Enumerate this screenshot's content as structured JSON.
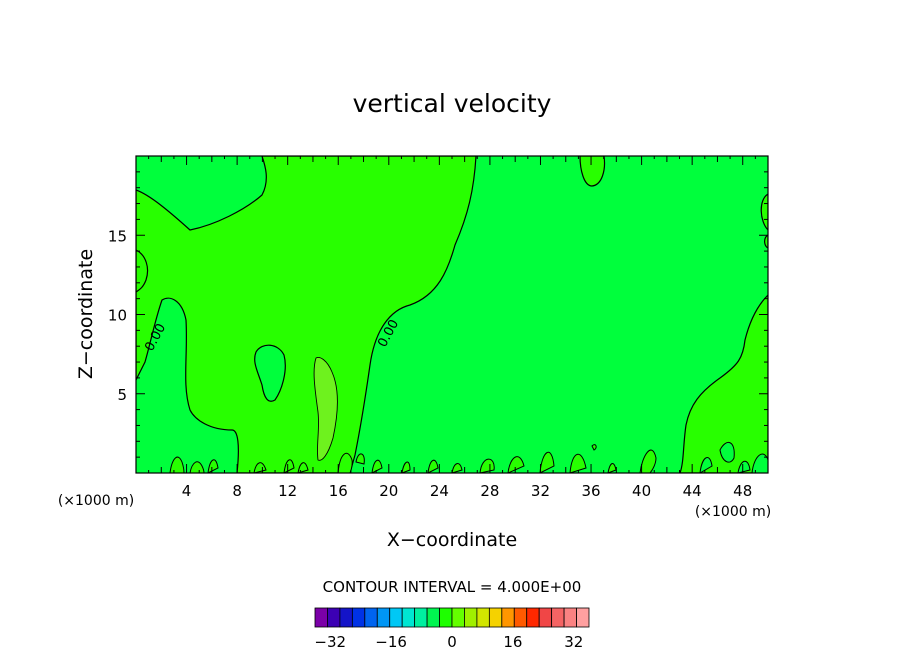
{
  "chart_data": {
    "type": "contour",
    "title": "vertical velocity",
    "xlabel": "X−coordinate",
    "ylabel": "Z−coordinate",
    "x_units": "(×1000 m)",
    "xlim": [
      0,
      50
    ],
    "ylim": [
      0,
      20
    ],
    "x_ticks": [
      4,
      8,
      12,
      16,
      20,
      24,
      28,
      32,
      36,
      40,
      44,
      48
    ],
    "y_ticks": [
      5,
      10,
      15
    ],
    "contour_label": "0.00",
    "contour_interval_text": "CONTOUR INTERVAL = 4.000E+00",
    "colorbar": {
      "min": -36,
      "max": 36,
      "step": 4,
      "tick_labels": [
        "−32",
        "−16",
        "0",
        "16",
        "32"
      ],
      "tick_values": [
        -32,
        -16,
        0,
        16,
        32
      ],
      "colors": [
        "#7b00a8",
        "#3c00b4",
        "#1414c8",
        "#0032e6",
        "#0064f0",
        "#0096f5",
        "#00c8f5",
        "#00e6d2",
        "#00f0a0",
        "#00f550",
        "#1eff00",
        "#64ff00",
        "#a0f000",
        "#d2e600",
        "#f5d200",
        "#ff9600",
        "#ff5a00",
        "#ff2800",
        "#f04646",
        "#f56464",
        "#fa8282",
        "#ffa0a0"
      ]
    },
    "field_colors": {
      "main": "#00ff3c",
      "positive": "#28ff00",
      "core": "#6ef21e"
    }
  }
}
